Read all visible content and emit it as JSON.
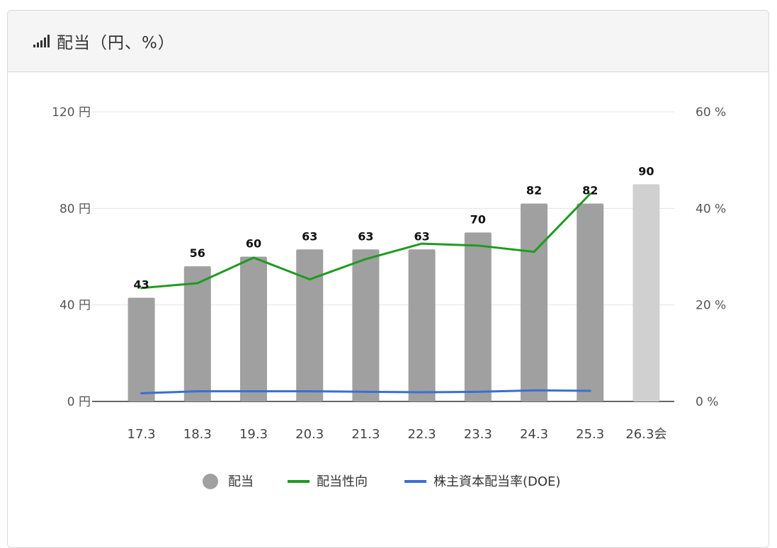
{
  "header": {
    "title": "配当（円、%）",
    "icon": "signal-bars-icon"
  },
  "chart_data": {
    "type": "bar",
    "categories": [
      "17.3",
      "18.3",
      "19.3",
      "20.3",
      "21.3",
      "22.3",
      "23.3",
      "24.3",
      "25.3",
      "26.3会"
    ],
    "series": [
      {
        "name": "配当",
        "type": "bar",
        "axis": "left",
        "values": [
          43,
          56,
          60,
          63,
          63,
          63,
          70,
          82,
          82,
          90
        ],
        "color": "#a0a0a0",
        "forecast_color": "#d0d0d0",
        "forecast_index": 9
      },
      {
        "name": "配当性向",
        "type": "line",
        "axis": "right",
        "values": [
          23.5,
          24.5,
          29.8,
          25.3,
          29.5,
          32.7,
          32.3,
          31.0,
          43.0,
          null
        ],
        "color": "#1f9a1f"
      },
      {
        "name": "株主資本配当率(DOE)",
        "type": "line",
        "axis": "right",
        "values": [
          1.7,
          2.1,
          2.1,
          2.1,
          2.0,
          1.9,
          2.0,
          2.3,
          2.2,
          null
        ],
        "color": "#3a6fd1"
      }
    ],
    "left_axis": {
      "ylim": [
        0,
        120
      ],
      "ticks": [
        0,
        40,
        80,
        120
      ],
      "unit": "円"
    },
    "right_axis": {
      "ylim": [
        0,
        60
      ],
      "ticks": [
        0,
        20,
        40,
        60
      ],
      "unit": "%"
    },
    "data_labels": [
      "43",
      "56",
      "60",
      "63",
      "63",
      "63",
      "70",
      "82",
      "82",
      "90"
    ],
    "grid": true,
    "legend_position": "bottom"
  }
}
